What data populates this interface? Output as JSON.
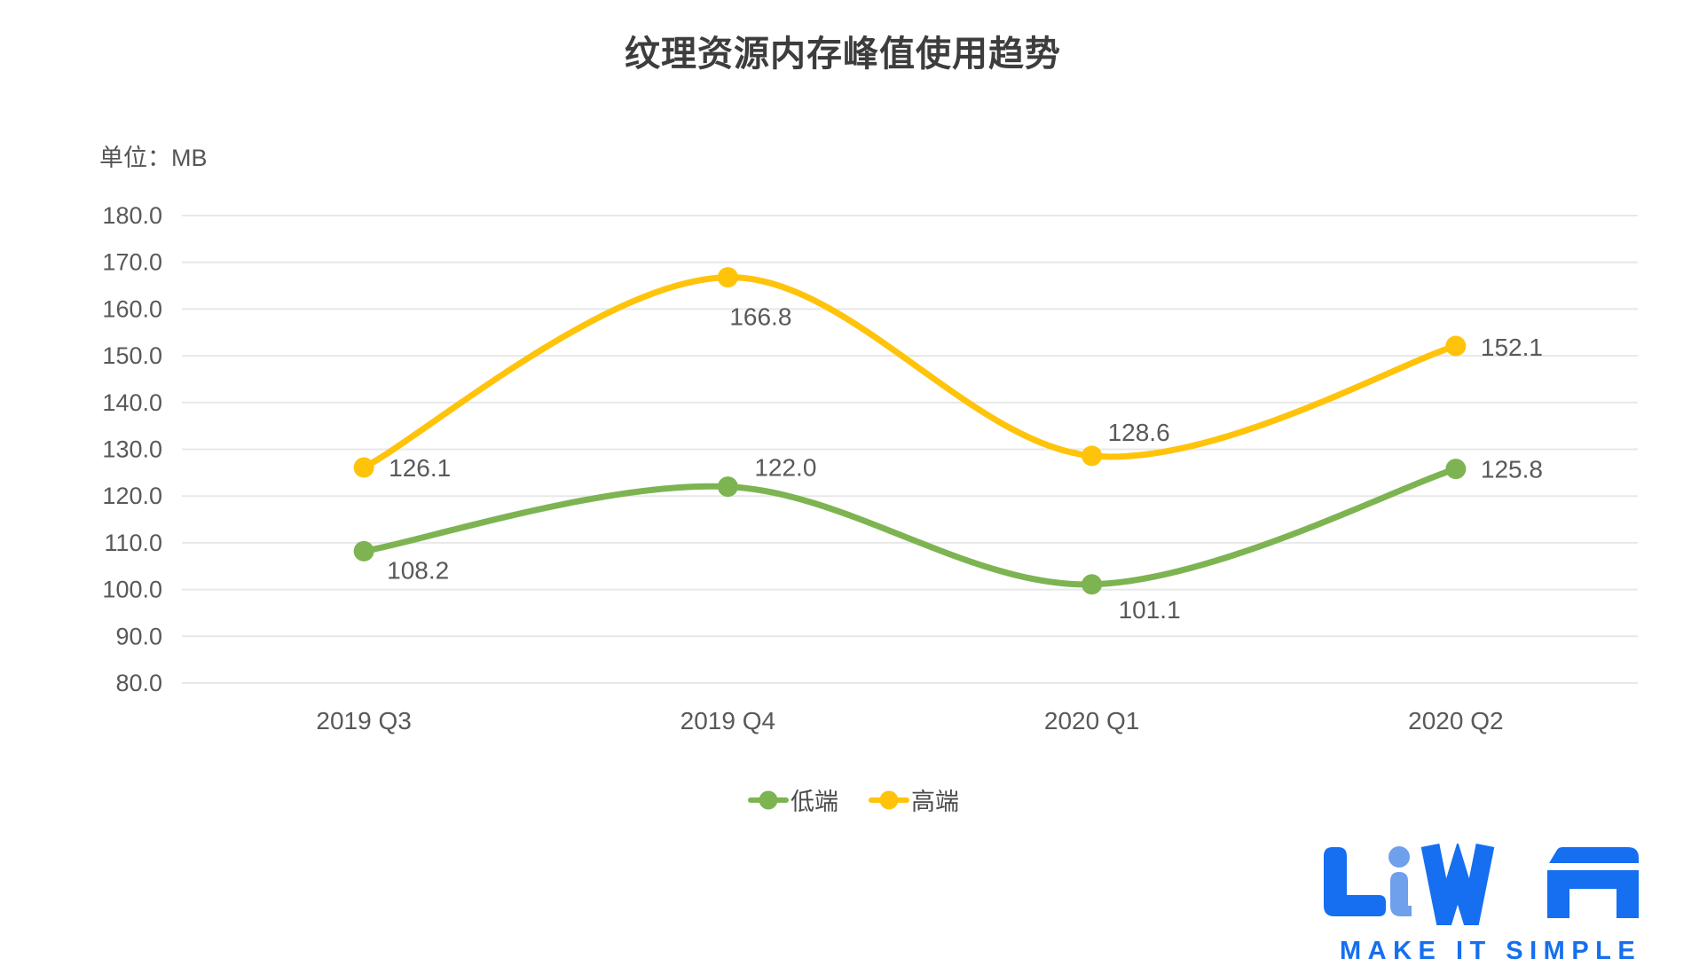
{
  "title": "纹理资源内存峰值使用趋势",
  "unit_label": "单位：MB",
  "chart_data": {
    "type": "line",
    "categories": [
      "2019 Q3",
      "2019 Q4",
      "2020 Q1",
      "2020 Q2"
    ],
    "series": [
      {
        "name": "低端",
        "color": "#7DB451",
        "values": [
          108.2,
          122.0,
          101.1,
          125.8
        ]
      },
      {
        "name": "高端",
        "color": "#FFC30A",
        "values": [
          126.1,
          166.8,
          128.6,
          152.1
        ]
      }
    ],
    "ylim": [
      80,
      180
    ],
    "ytick_step": 10,
    "ytick_format_decimals": 1,
    "grid": true,
    "legend_position": "bottom",
    "xlabel": "",
    "ylabel": "单位：MB"
  },
  "legend": {
    "items": [
      {
        "label": "低端",
        "color": "#7DB451"
      },
      {
        "label": "高端",
        "color": "#FFC30A"
      }
    ]
  },
  "logo": {
    "name": "LiWA",
    "tagline": "MAKE IT SIMPLE",
    "color_primary": "#156FF0",
    "color_accent": "#6EA0EB"
  },
  "colors": {
    "title_text": "#3D3D3D",
    "axis_text": "#595959",
    "data_label_text": "#595959",
    "gridline": "#E8E8E8"
  }
}
